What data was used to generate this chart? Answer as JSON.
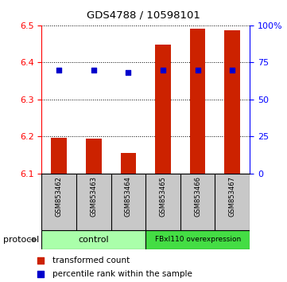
{
  "title": "GDS4788 / 10598101",
  "samples": [
    "GSM853462",
    "GSM853463",
    "GSM853464",
    "GSM853465",
    "GSM853466",
    "GSM853467"
  ],
  "red_values": [
    6.197,
    6.195,
    6.155,
    6.447,
    6.492,
    6.487
  ],
  "blue_values_pct": [
    70,
    70,
    68,
    70,
    70,
    70
  ],
  "bar_bottom": 6.1,
  "ylim_left": [
    6.1,
    6.5
  ],
  "ylim_right": [
    0,
    100
  ],
  "yticks_left": [
    6.1,
    6.2,
    6.3,
    6.4,
    6.5
  ],
  "yticks_right": [
    0,
    25,
    50,
    75,
    100
  ],
  "ytick_labels_right": [
    "0",
    "25",
    "50",
    "75",
    "100%"
  ],
  "control_color": "#AAFFAA",
  "fbx_color": "#44DD44",
  "bar_color": "#CC2200",
  "marker_color": "#0000CC",
  "sample_bg_color": "#C8C8C8",
  "legend_red_label": "transformed count",
  "legend_blue_label": "percentile rank within the sample",
  "protocol_label": "protocol"
}
